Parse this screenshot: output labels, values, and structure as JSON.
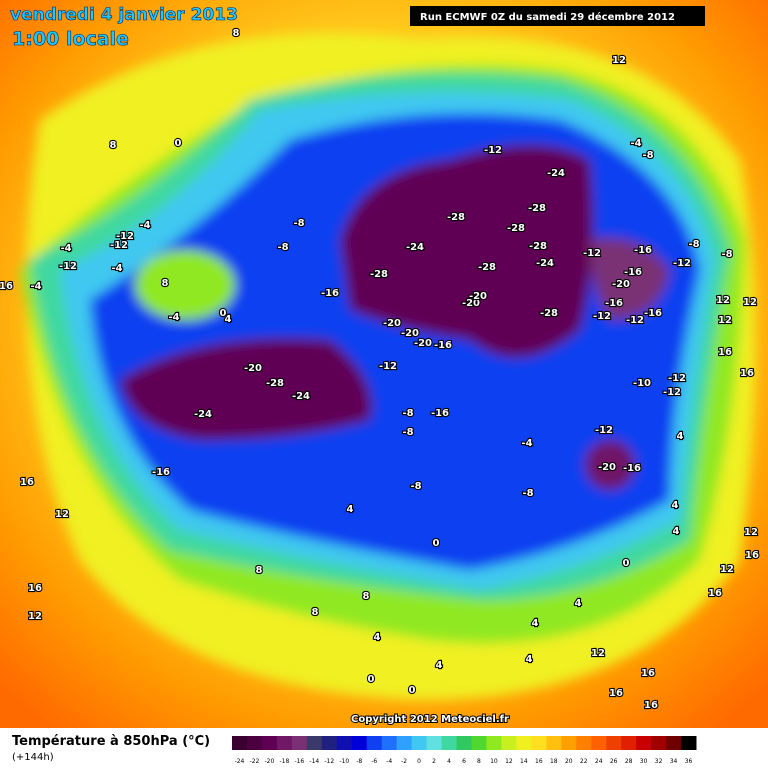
{
  "header": {
    "date": "vendredi 4 janvier 2013",
    "time": "1:00 locale",
    "run": "Run ECMWF 0Z du samedi 29 décembre 2012"
  },
  "copyright": "Copyright 2012 Meteociel.fr",
  "legend": {
    "title": "Température à 850hPa (°C)",
    "subtitle": "(+144h)",
    "ticks": [
      -24,
      -22,
      -20,
      -18,
      -16,
      -14,
      -12,
      -10,
      -8,
      -6,
      -4,
      -2,
      0,
      2,
      4,
      6,
      8,
      10,
      12,
      14,
      16,
      18,
      20,
      22,
      24,
      26,
      28,
      30,
      32,
      34,
      36
    ],
    "colors": [
      "#3a0030",
      "#4d0040",
      "#600055",
      "#701865",
      "#7a3075",
      "#3a3a6a",
      "#202080",
      "#1010b0",
      "#0000d8",
      "#1040f0",
      "#2070ff",
      "#30a0ff",
      "#40c8f0",
      "#60e0e0",
      "#40d8a0",
      "#30c860",
      "#50d830",
      "#90e820",
      "#c8f020",
      "#f0f020",
      "#ffe020",
      "#ffc010",
      "#ffa000",
      "#ff8000",
      "#ff6000",
      "#f04000",
      "#e02000",
      "#c80000",
      "#a00000",
      "#700000",
      "#000000"
    ]
  },
  "map_labels": [
    0,
    8,
    8,
    12,
    -12,
    -24,
    -8,
    -4,
    -28,
    -28,
    -28,
    -24,
    -28,
    -24,
    -28,
    -28,
    -8,
    -8,
    -16,
    -20,
    -20,
    -28,
    -20,
    -20,
    -20,
    -16,
    -12,
    -16,
    -8,
    -12,
    -8,
    -16,
    -20,
    -16,
    -12,
    -12,
    -16,
    12,
    12,
    12,
    16,
    16,
    -12,
    -20,
    -28,
    -24,
    -24,
    -8,
    -16,
    -8,
    -4,
    -12,
    -20,
    -16,
    -8,
    -8,
    -16,
    -10,
    -12,
    -12,
    4,
    4,
    0,
    0,
    4,
    4,
    8,
    8,
    8,
    4,
    4,
    4,
    4,
    4,
    0,
    0,
    12,
    16,
    16,
    16,
    16,
    12,
    12,
    16,
    16,
    12,
    16,
    12,
    16,
    -4,
    -12,
    -4,
    -4,
    8,
    -4,
    4,
    0,
    -4,
    -12,
    -12
  ]
}
